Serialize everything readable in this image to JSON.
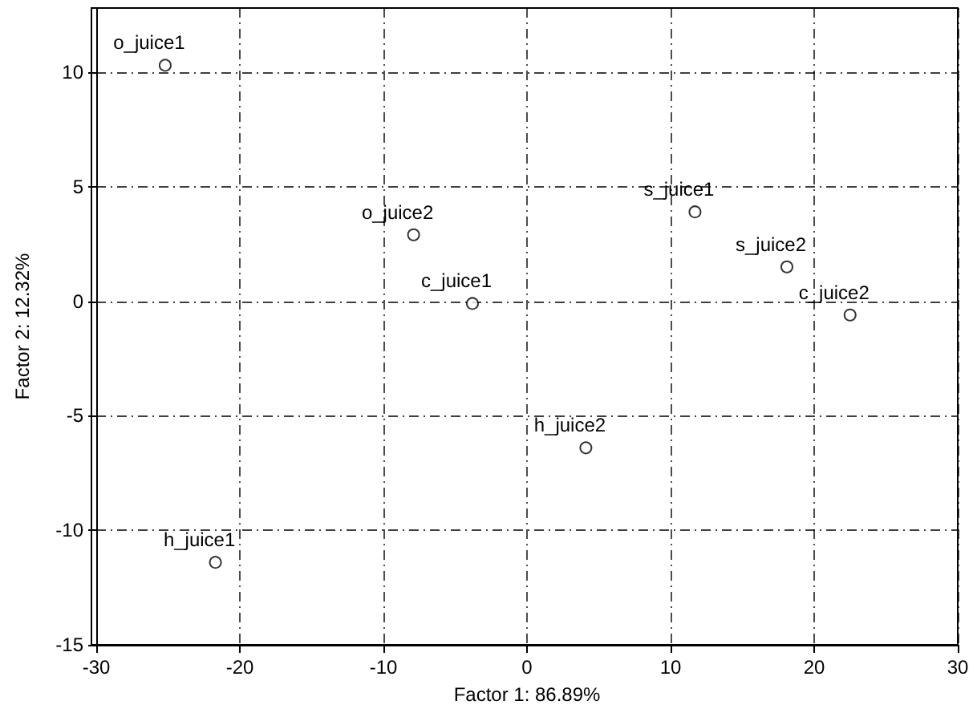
{
  "chart_data": {
    "type": "scatter",
    "xlabel": "Factor 1: 86.89%",
    "ylabel": "Factor 2: 12.32%",
    "x": [
      -25.2,
      -7.9,
      -3.8,
      11.7,
      18.1,
      22.5,
      4.1,
      -21.7
    ],
    "values": [
      10.3,
      2.9,
      -0.1,
      3.9,
      1.5,
      -0.6,
      -6.4,
      -11.4
    ],
    "color": "#000000",
    "marker": "circle",
    "annotations": [
      {
        "text": "o_juice1",
        "x": -25.2,
        "y": 10.3
      },
      {
        "text": "o_juice2",
        "x": -7.9,
        "y": 2.9
      },
      {
        "text": "c_juice1",
        "x": -3.8,
        "y": -0.1
      },
      {
        "text": "s_juice1",
        "x": 11.7,
        "y": 3.9
      },
      {
        "text": "s_juice2",
        "x": 18.1,
        "y": 1.5
      },
      {
        "text": "c_juice2",
        "x": 22.5,
        "y": -0.6
      },
      {
        "text": "h_juice2",
        "x": 4.1,
        "y": -6.4
      },
      {
        "text": "h_juice1",
        "x": -21.7,
        "y": -11.4
      }
    ],
    "xlim": [
      -30,
      30
    ],
    "xticks": [
      -30,
      -20,
      -10,
      0,
      10,
      20,
      30
    ],
    "ylim": [
      -15,
      12.8
    ],
    "yticks": [
      -15,
      -10,
      -5,
      0,
      5,
      10
    ],
    "grid": true
  }
}
